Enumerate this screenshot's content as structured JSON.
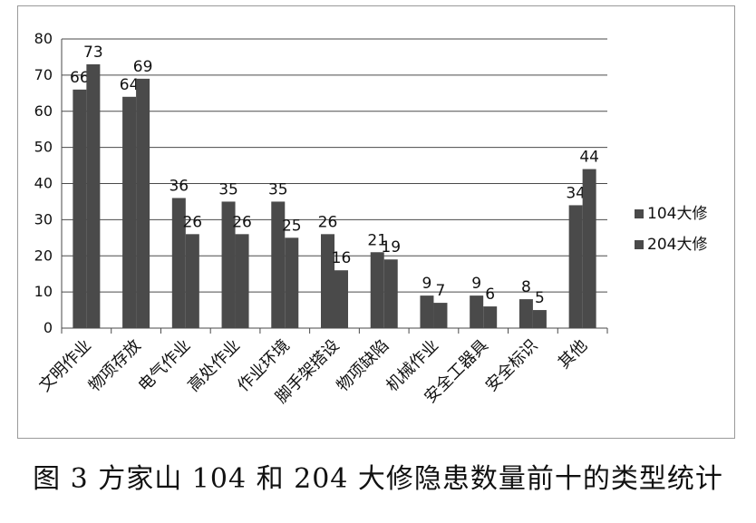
{
  "chart_data": {
    "type": "bar",
    "categories": [
      "文明作业",
      "物项存放",
      "电气作业",
      "高处作业",
      "作业环境",
      "脚手架搭设",
      "物项缺陷",
      "机械作业",
      "安全工器具",
      "安全标识",
      "其他"
    ],
    "series": [
      {
        "name": "104大修",
        "values": [
          66,
          64,
          36,
          35,
          35,
          26,
          21,
          9,
          9,
          8,
          34
        ],
        "color": "#4a4a4a"
      },
      {
        "name": "204大修",
        "values": [
          73,
          69,
          26,
          26,
          25,
          16,
          19,
          7,
          6,
          5,
          44
        ],
        "color": "#4a4a4a"
      }
    ],
    "yticks": [
      0,
      10,
      20,
      30,
      40,
      50,
      60,
      70,
      80
    ],
    "ylim": [
      0,
      80
    ],
    "grid": true,
    "legend_position": "right",
    "gridline_color": "#4a4a4a"
  },
  "caption": "图 3  方家山 104 和 204 大修隐患数量前十的类型统计"
}
